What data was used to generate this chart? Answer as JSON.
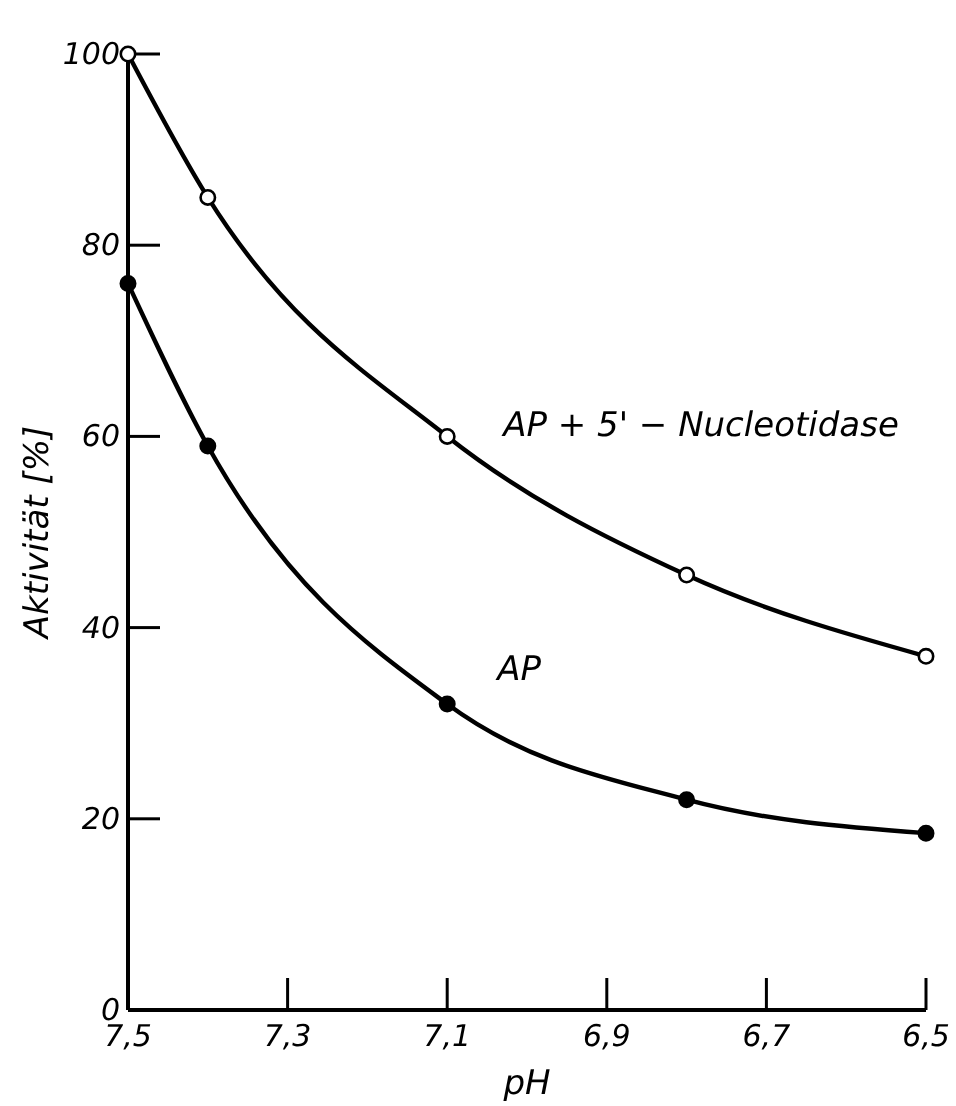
{
  "chart_data": {
    "type": "line",
    "xlabel": "pH",
    "ylabel": "Aktivität [%]",
    "xlim": [
      7.5,
      6.5
    ],
    "xticks": [
      {
        "value": 7.5,
        "label": "7,5"
      },
      {
        "value": 7.3,
        "label": "7,3"
      },
      {
        "value": 7.1,
        "label": "7,1"
      },
      {
        "value": 6.9,
        "label": "6,9"
      },
      {
        "value": 6.7,
        "label": "6,7"
      },
      {
        "value": 6.5,
        "label": "6,5"
      }
    ],
    "ylim": [
      0,
      100
    ],
    "yticks": [
      0,
      20,
      40,
      60,
      80,
      100
    ],
    "marker": "circle",
    "series": [
      {
        "name": "AP + 5' − Nucleotidase",
        "color": "#000000",
        "x": [
          7.5,
          7.4,
          7.1,
          6.8,
          6.5
        ],
        "values": [
          100,
          85,
          60,
          45.5,
          37
        ]
      },
      {
        "name": "AP",
        "color": "#000000",
        "x": [
          7.5,
          7.4,
          7.1,
          6.8,
          6.5
        ],
        "values": [
          76,
          59,
          32,
          22,
          18.5
        ]
      }
    ]
  }
}
